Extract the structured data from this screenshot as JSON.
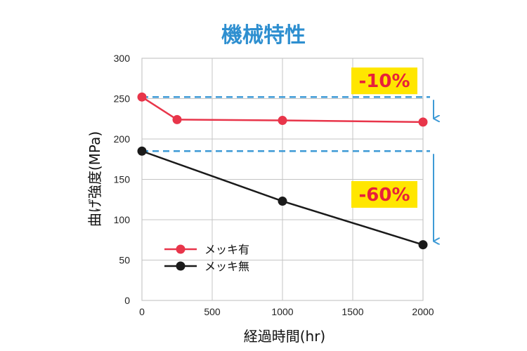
{
  "chart_data": {
    "type": "line",
    "title": "機械特性",
    "xlabel": "経過時間(hr)",
    "ylabel": "曲げ強度(MPa)",
    "xlim": [
      0,
      2000
    ],
    "ylim": [
      0,
      300
    ],
    "x_ticks": [
      0,
      500,
      1000,
      1500,
      2000
    ],
    "y_ticks": [
      0,
      50,
      100,
      150,
      200,
      250,
      300
    ],
    "grid": true,
    "legend_position": "bottom-left",
    "series": [
      {
        "name": "メッキ有",
        "color": "#e8354a",
        "points": [
          {
            "x": 0,
            "y": 252
          },
          {
            "x": 250,
            "y": 224
          },
          {
            "x": 1000,
            "y": 223
          },
          {
            "x": 2000,
            "y": 221
          }
        ]
      },
      {
        "name": "メッキ無",
        "color": "#1a1a1a",
        "points": [
          {
            "x": 0,
            "y": 185
          },
          {
            "x": 1000,
            "y": 123
          },
          {
            "x": 2000,
            "y": 69
          }
        ]
      }
    ],
    "reference_lines": [
      {
        "y": 252,
        "color": "#3d9ad6"
      },
      {
        "y": 185,
        "color": "#3d9ad6"
      }
    ],
    "annotations": [
      {
        "text": "-10%",
        "from_y": 252,
        "to_y": 221,
        "highlight": "#ffe600"
      },
      {
        "text": "-60%",
        "from_y": 185,
        "to_y": 69,
        "highlight": "#ffe600"
      }
    ]
  }
}
